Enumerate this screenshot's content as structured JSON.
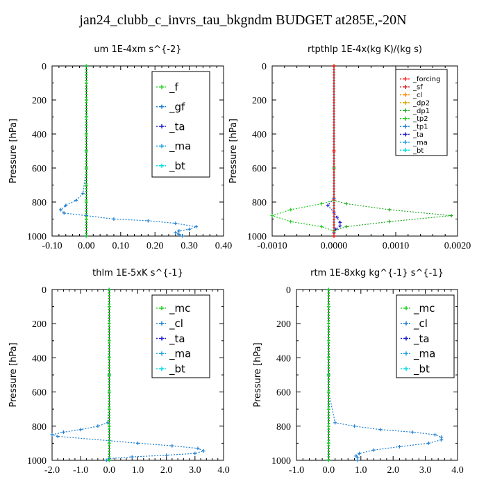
{
  "title": "jan24_clubb_c_invrs_tau_bkgndm  BUDGET at285E,-20N",
  "chart_data": [
    {
      "type": "line",
      "title": "um   1E-4xm s^{-2}",
      "ylabel": "Pressure [hPa]",
      "xlim": [
        -0.1,
        0.4
      ],
      "ylim": [
        1000,
        0
      ],
      "xticks": [
        "-0.10",
        "0.00",
        "0.10",
        "0.20",
        "0.30",
        "0.40"
      ],
      "yticks": [
        "0",
        "200",
        "400",
        "600",
        "800",
        "1000"
      ],
      "legend_position": "top-right",
      "series": [
        {
          "name": "_f",
          "color": "#22cc22",
          "x": [
            0,
            0,
            0,
            0,
            0,
            0,
            0,
            0,
            0,
            0,
            0
          ],
          "y": [
            0,
            100,
            200,
            300,
            400,
            500,
            600,
            700,
            800,
            900,
            1000
          ]
        },
        {
          "name": "_gf",
          "color": "#1e7fd0",
          "x": [
            0,
            0,
            0,
            -0.01,
            -0.03,
            -0.06,
            -0.075,
            -0.065,
            0,
            0.08,
            0.18,
            0.26,
            0.32,
            0.3,
            0.27,
            0.26,
            0.27,
            0.28
          ],
          "y": [
            0,
            300,
            600,
            750,
            790,
            820,
            845,
            865,
            880,
            900,
            910,
            925,
            945,
            960,
            970,
            980,
            990,
            1000
          ]
        },
        {
          "name": "_ta",
          "color": "#2222cc",
          "x": [
            0,
            0,
            0
          ],
          "y": [
            0,
            500,
            1000
          ]
        },
        {
          "name": "_ma",
          "color": "#1e9fe0",
          "x": [
            0,
            0,
            0
          ],
          "y": [
            0,
            500,
            1000
          ]
        },
        {
          "name": "_bt",
          "color": "#00dddd",
          "x": [
            0,
            0,
            0
          ],
          "y": [
            0,
            500,
            1000
          ]
        }
      ]
    },
    {
      "type": "line",
      "title": "rtpthlp   1E-4x(kg K)/(kg s)",
      "ylabel": "Pressure [hPa]",
      "xlim": [
        -0.001,
        0.002
      ],
      "ylim": [
        1000,
        0
      ],
      "xticks": [
        "-0.0010",
        "0.0000",
        "0.0010",
        "0.0020"
      ],
      "yticks": [
        "0",
        "200",
        "400",
        "600",
        "800",
        "1000"
      ],
      "legend_position": "top-right",
      "series": [
        {
          "name": "_forcing",
          "color": "#ff2222",
          "x": [
            0,
            0,
            0
          ],
          "y": [
            0,
            500,
            1000
          ]
        },
        {
          "name": "_sf",
          "color": "#cc2222",
          "x": [
            0,
            0,
            0
          ],
          "y": [
            0,
            500,
            1000
          ]
        },
        {
          "name": "_cl",
          "color": "#ff8800",
          "x": [
            0,
            0,
            0
          ],
          "y": [
            0,
            500,
            1000
          ]
        },
        {
          "name": "_dp2",
          "color": "#ddaa00",
          "x": [
            0,
            0,
            0
          ],
          "y": [
            0,
            500,
            1000
          ]
        },
        {
          "name": "_dp1",
          "color": "#22aa22",
          "x": [
            0,
            0,
            0,
            0.0002,
            0.0009,
            0.0019,
            0.0009,
            0.0002,
            0
          ],
          "y": [
            0,
            600,
            790,
            810,
            845,
            880,
            915,
            945,
            970
          ]
        },
        {
          "name": "_tp2",
          "color": "#22cc22",
          "x": [
            0,
            0,
            0,
            -0.0002,
            -0.0007,
            -0.001,
            -0.0007,
            -0.0002,
            0
          ],
          "y": [
            0,
            600,
            790,
            810,
            845,
            880,
            915,
            945,
            970
          ]
        },
        {
          "name": "_tp1",
          "color": "#1e7fd0",
          "x": [
            0,
            0,
            0
          ],
          "y": [
            0,
            500,
            1000
          ]
        },
        {
          "name": "_ta",
          "color": "#2222cc",
          "x": [
            0,
            0,
            -0.0001,
            0,
            5e-05,
            0.0001,
            0.0001,
            3e-05,
            0
          ],
          "y": [
            0,
            780,
            820,
            860,
            890,
            920,
            940,
            960,
            980
          ]
        },
        {
          "name": "_ma",
          "color": "#1e9fe0",
          "x": [
            0,
            0,
            0
          ],
          "y": [
            0,
            500,
            1000
          ]
        },
        {
          "name": "_bt",
          "color": "#00dddd",
          "x": [
            0,
            0,
            0
          ],
          "y": [
            0,
            500,
            1000
          ]
        }
      ]
    },
    {
      "type": "line",
      "title": "thlm   1E-5xK s^{-1}",
      "ylabel": "Pressure [hPa]",
      "xlim": [
        -2.0,
        4.0
      ],
      "ylim": [
        1000,
        0
      ],
      "xticks": [
        "-2.0",
        "-1.0",
        "0.0",
        "1.0",
        "2.0",
        "3.0",
        "4.0"
      ],
      "yticks": [
        "0",
        "200",
        "400",
        "600",
        "800",
        "1000"
      ],
      "legend_position": "top-right",
      "series": [
        {
          "name": "_mc",
          "color": "#22cc22",
          "x": [
            0,
            0,
            0,
            0,
            0,
            0,
            0,
            0,
            0,
            0,
            0
          ],
          "y": [
            0,
            100,
            200,
            300,
            400,
            500,
            600,
            700,
            800,
            900,
            1000
          ]
        },
        {
          "name": "_cl",
          "color": "#1e7fd0",
          "x": [
            0,
            0,
            -0.05,
            -0.4,
            -1.0,
            -1.6,
            -2.0,
            -1.8,
            0,
            1.0,
            2.2,
            3.1,
            3.3,
            3.0,
            2.0,
            0.8,
            0,
            -0.1
          ],
          "y": [
            0,
            600,
            780,
            800,
            820,
            835,
            850,
            860,
            885,
            900,
            915,
            930,
            945,
            960,
            970,
            980,
            990,
            1000
          ]
        },
        {
          "name": "_ta",
          "color": "#2222cc",
          "x": [
            0,
            0,
            0
          ],
          "y": [
            0,
            500,
            1000
          ]
        },
        {
          "name": "_ma",
          "color": "#1e9fe0",
          "x": [
            0,
            0,
            0
          ],
          "y": [
            0,
            500,
            1000
          ]
        },
        {
          "name": "_bt",
          "color": "#00dddd",
          "x": [
            0,
            0,
            0
          ],
          "y": [
            0,
            500,
            1000
          ]
        }
      ]
    },
    {
      "type": "line",
      "title": "rtm   1E-8xkg kg^{-1} s^{-1}",
      "ylabel": "Pressure [hPa]",
      "xlim": [
        -1.0,
        4.0
      ],
      "ylim": [
        1000,
        0
      ],
      "xticks": [
        "-1.0",
        "0.0",
        "1.0",
        "2.0",
        "3.0",
        "4.0"
      ],
      "yticks": [
        "0",
        "200",
        "400",
        "600",
        "800",
        "1000"
      ],
      "legend_position": "top-right",
      "series": [
        {
          "name": "_mc",
          "color": "#22cc22",
          "x": [
            0,
            0,
            0,
            0,
            0,
            0,
            0,
            0,
            0,
            0,
            0
          ],
          "y": [
            0,
            100,
            200,
            300,
            400,
            500,
            600,
            700,
            800,
            900,
            1000
          ]
        },
        {
          "name": "_cl",
          "color": "#1e7fd0",
          "x": [
            0,
            0,
            0.2,
            0.8,
            1.6,
            2.6,
            3.3,
            3.5,
            3.5,
            3.1,
            2.2,
            1.4,
            0.95,
            0.85,
            0.9,
            0.9
          ],
          "y": [
            0,
            600,
            780,
            800,
            820,
            835,
            850,
            865,
            880,
            900,
            920,
            940,
            960,
            975,
            985,
            1000
          ]
        },
        {
          "name": "_ta",
          "color": "#2222cc",
          "x": [
            0,
            0,
            0
          ],
          "y": [
            0,
            500,
            1000
          ]
        },
        {
          "name": "_ma",
          "color": "#1e9fe0",
          "x": [
            0,
            0,
            0
          ],
          "y": [
            0,
            500,
            1000
          ]
        },
        {
          "name": "_bt",
          "color": "#00dddd",
          "x": [
            0,
            0,
            0
          ],
          "y": [
            0,
            500,
            1000
          ]
        }
      ]
    }
  ]
}
